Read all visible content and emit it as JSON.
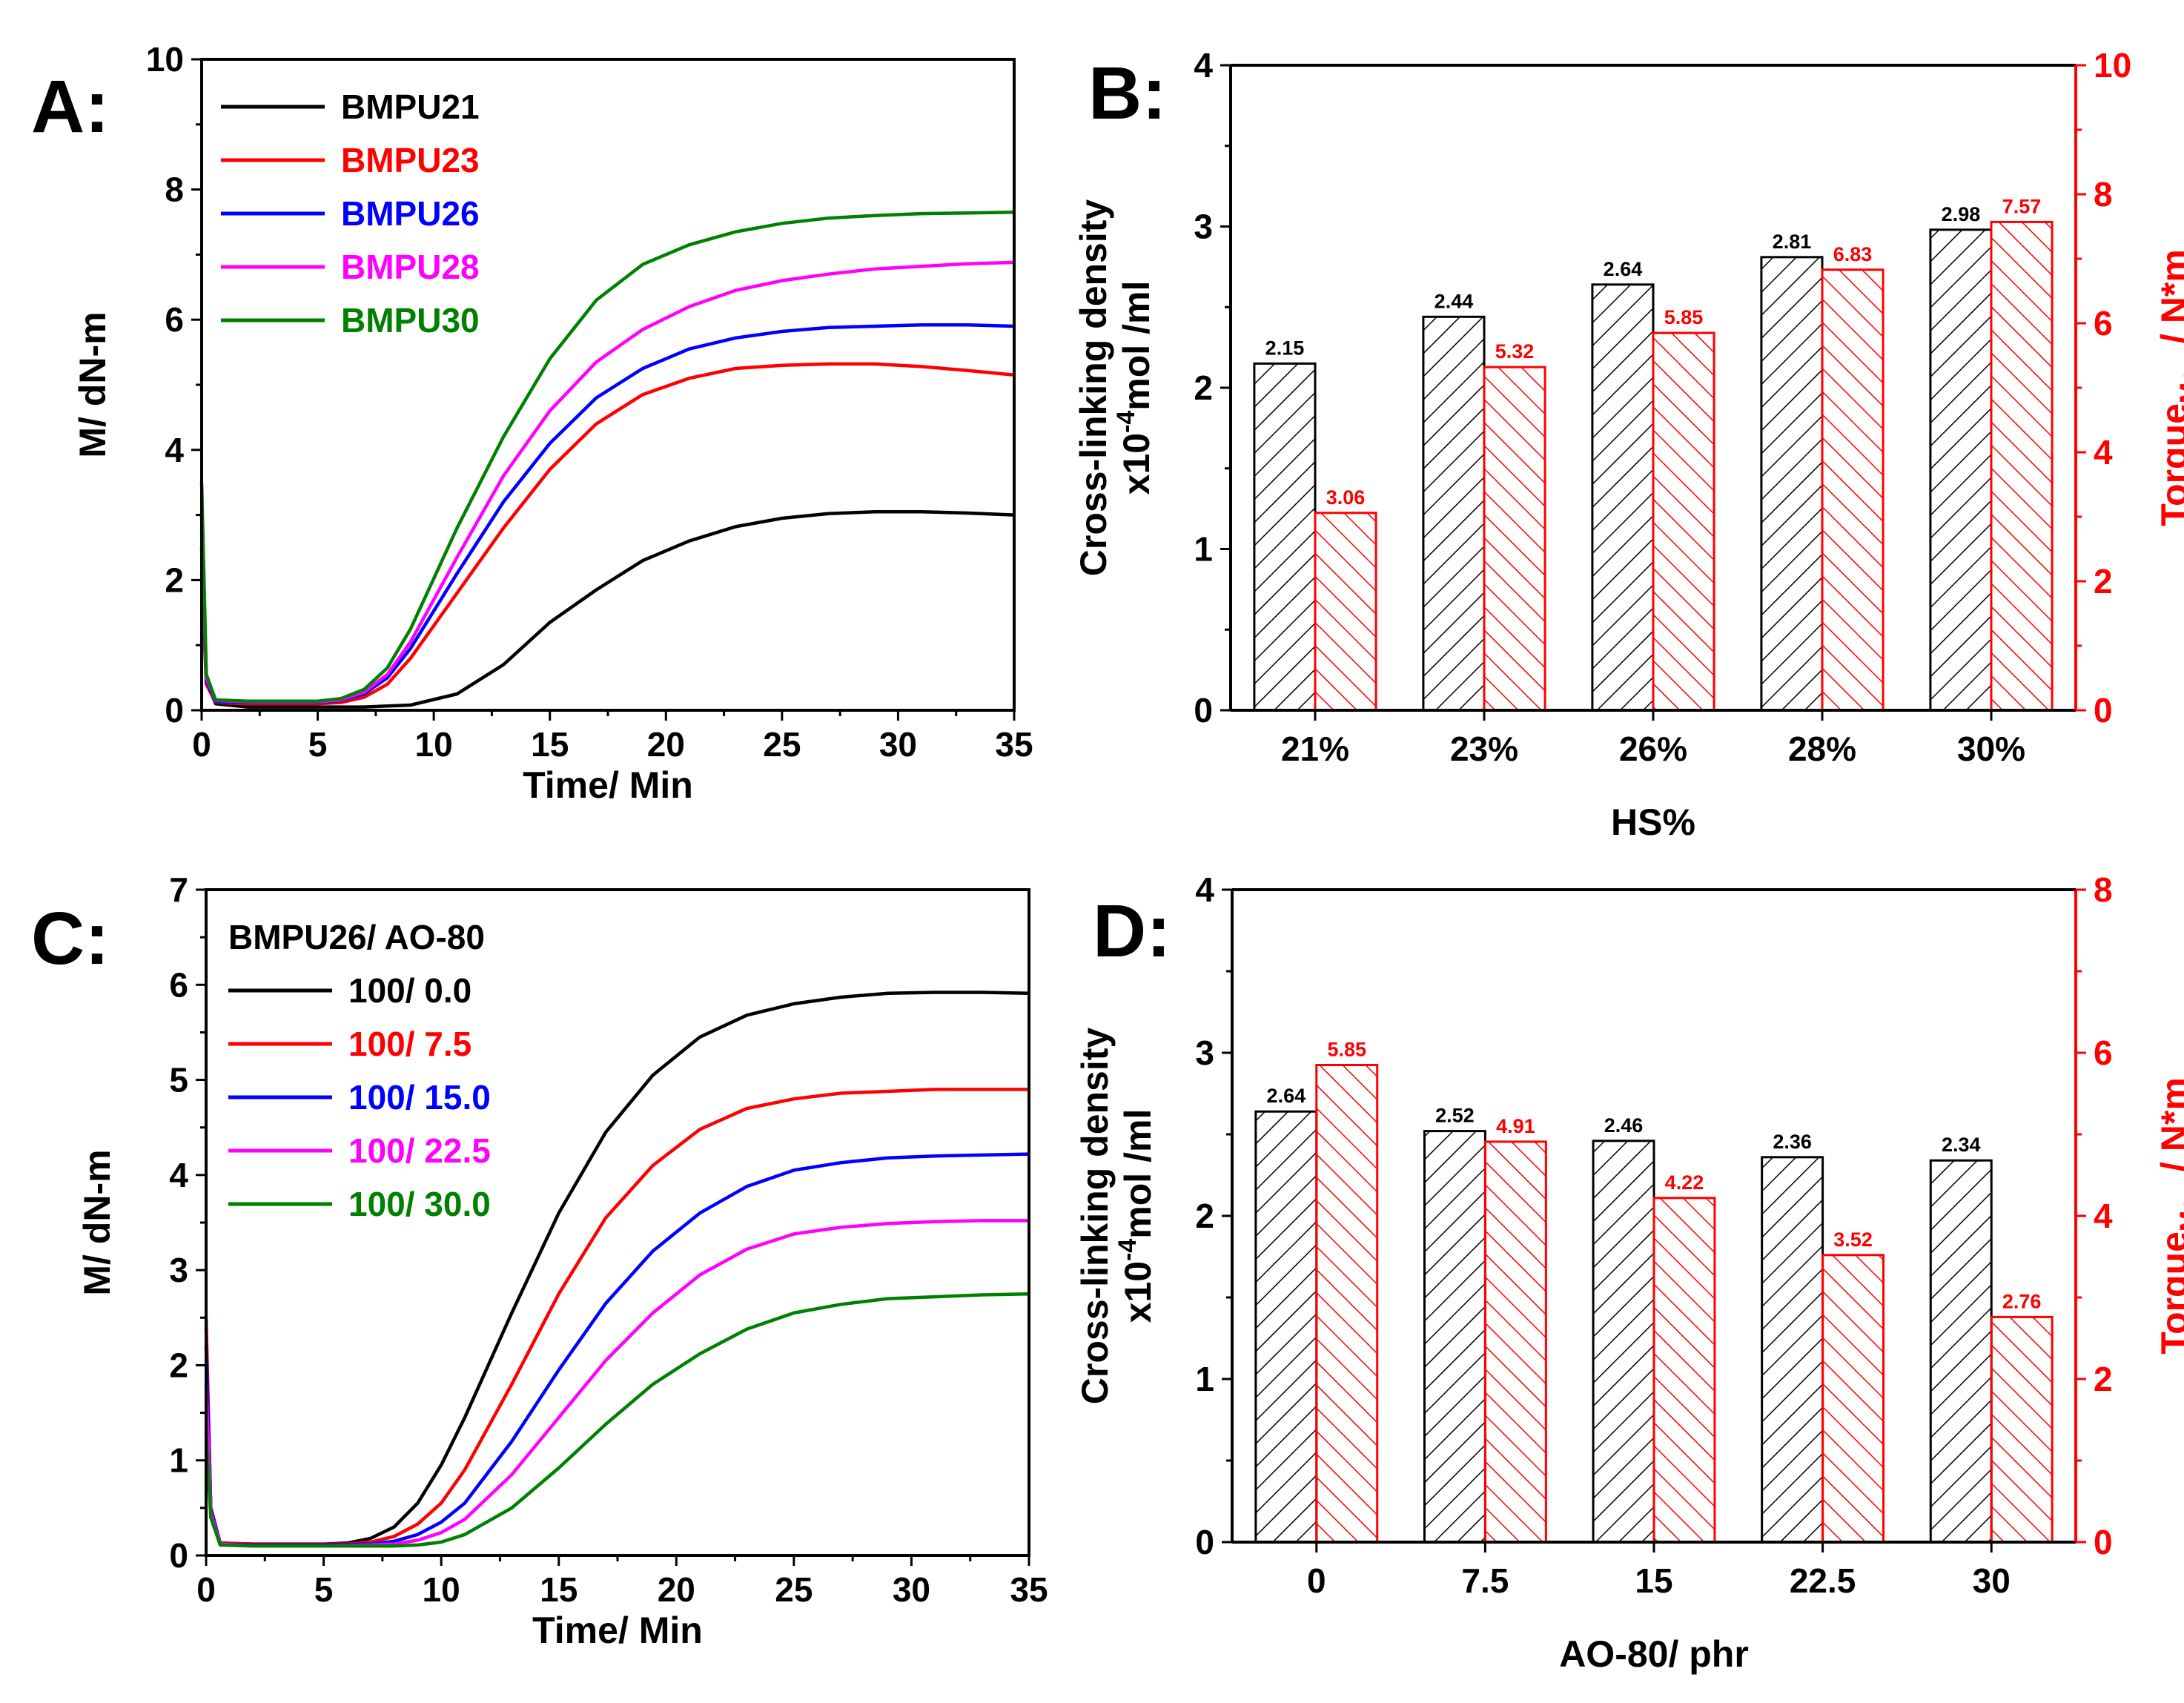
{
  "chart_data": [
    {
      "panel": "A:",
      "type": "line",
      "xlabel": "Time/ Min",
      "ylabel": "M/ dN-m",
      "xlim": [
        0,
        35
      ],
      "ylim": [
        0,
        10
      ],
      "xticks": [
        "0",
        "5",
        "10",
        "15",
        "20",
        "25",
        "30",
        "35"
      ],
      "yticks": [
        "0",
        "2",
        "4",
        "6",
        "8",
        "10"
      ],
      "legend_position": "top-left",
      "series": [
        {
          "name": "BMPU21",
          "color": "#000000",
          "points": [
            [
              0,
              3.0
            ],
            [
              0.2,
              0.45
            ],
            [
              0.6,
              0.1
            ],
            [
              2,
              0.05
            ],
            [
              5,
              0.05
            ],
            [
              7,
              0.05
            ],
            [
              9,
              0.08
            ],
            [
              11,
              0.25
            ],
            [
              13,
              0.7
            ],
            [
              15,
              1.35
            ],
            [
              17,
              1.85
            ],
            [
              19,
              2.3
            ],
            [
              21,
              2.6
            ],
            [
              23,
              2.82
            ],
            [
              25,
              2.95
            ],
            [
              27,
              3.02
            ],
            [
              29,
              3.05
            ],
            [
              31,
              3.05
            ],
            [
              33,
              3.03
            ],
            [
              35,
              3.0
            ]
          ]
        },
        {
          "name": "BMPU23",
          "color": "#ff0000",
          "points": [
            [
              0,
              2.1
            ],
            [
              0.2,
              0.4
            ],
            [
              0.6,
              0.12
            ],
            [
              2,
              0.1
            ],
            [
              5,
              0.1
            ],
            [
              6,
              0.12
            ],
            [
              7,
              0.2
            ],
            [
              8,
              0.4
            ],
            [
              9,
              0.8
            ],
            [
              11,
              1.8
            ],
            [
              13,
              2.8
            ],
            [
              15,
              3.7
            ],
            [
              17,
              4.4
            ],
            [
              19,
              4.85
            ],
            [
              21,
              5.1
            ],
            [
              23,
              5.25
            ],
            [
              25,
              5.3
            ],
            [
              27,
              5.32
            ],
            [
              29,
              5.32
            ],
            [
              31,
              5.28
            ],
            [
              33,
              5.22
            ],
            [
              35,
              5.15
            ]
          ]
        },
        {
          "name": "BMPU26",
          "color": "#0000ff",
          "points": [
            [
              0,
              2.5
            ],
            [
              0.2,
              0.45
            ],
            [
              0.6,
              0.13
            ],
            [
              2,
              0.12
            ],
            [
              5,
              0.12
            ],
            [
              6,
              0.15
            ],
            [
              7,
              0.25
            ],
            [
              8,
              0.5
            ],
            [
              9,
              0.95
            ],
            [
              11,
              2.1
            ],
            [
              13,
              3.2
            ],
            [
              15,
              4.1
            ],
            [
              17,
              4.8
            ],
            [
              19,
              5.25
            ],
            [
              21,
              5.55
            ],
            [
              23,
              5.72
            ],
            [
              25,
              5.82
            ],
            [
              27,
              5.88
            ],
            [
              29,
              5.9
            ],
            [
              31,
              5.92
            ],
            [
              33,
              5.92
            ],
            [
              35,
              5.9
            ]
          ]
        },
        {
          "name": "BMPU28",
          "color": "#ff00ff",
          "points": [
            [
              0,
              2.8
            ],
            [
              0.2,
              0.5
            ],
            [
              0.6,
              0.15
            ],
            [
              2,
              0.13
            ],
            [
              5,
              0.13
            ],
            [
              6,
              0.16
            ],
            [
              7,
              0.28
            ],
            [
              8,
              0.55
            ],
            [
              9,
              1.05
            ],
            [
              11,
              2.35
            ],
            [
              13,
              3.6
            ],
            [
              15,
              4.6
            ],
            [
              17,
              5.35
            ],
            [
              19,
              5.85
            ],
            [
              21,
              6.2
            ],
            [
              23,
              6.45
            ],
            [
              25,
              6.6
            ],
            [
              27,
              6.7
            ],
            [
              29,
              6.78
            ],
            [
              31,
              6.82
            ],
            [
              33,
              6.86
            ],
            [
              35,
              6.88
            ]
          ]
        },
        {
          "name": "BMPU30",
          "color": "#008000",
          "points": [
            [
              0,
              3.5
            ],
            [
              0.2,
              0.55
            ],
            [
              0.6,
              0.16
            ],
            [
              2,
              0.14
            ],
            [
              5,
              0.14
            ],
            [
              6,
              0.18
            ],
            [
              7,
              0.32
            ],
            [
              8,
              0.65
            ],
            [
              9,
              1.25
            ],
            [
              11,
              2.8
            ],
            [
              13,
              4.2
            ],
            [
              15,
              5.4
            ],
            [
              17,
              6.3
            ],
            [
              19,
              6.85
            ],
            [
              21,
              7.15
            ],
            [
              23,
              7.35
            ],
            [
              25,
              7.48
            ],
            [
              27,
              7.56
            ],
            [
              29,
              7.6
            ],
            [
              31,
              7.63
            ],
            [
              33,
              7.64
            ],
            [
              35,
              7.65
            ]
          ]
        }
      ]
    },
    {
      "panel": "B:",
      "type": "bar",
      "xlabel": "HS%",
      "ylabel_line1": "Cross-linking density",
      "ylabel_line2_pre": "x10",
      "ylabel_line2_sup": "-4",
      "ylabel_line2_post": "mol /ml",
      "y2label_main": "Torque",
      "y2label_sub": "Max",
      "y2label_post": " / N*m",
      "categories": [
        "21%",
        "23%",
        "26%",
        "28%",
        "30%"
      ],
      "ylim": [
        0,
        4
      ],
      "y2lim": [
        0,
        10
      ],
      "yticks": [
        "0",
        "1",
        "2",
        "3",
        "4"
      ],
      "y2ticks": [
        "0",
        "2",
        "4",
        "6",
        "8",
        "10"
      ],
      "series": [
        {
          "name": "Cross-linking density",
          "axis": "left",
          "color": "#000000",
          "values": [
            2.15,
            2.44,
            2.64,
            2.81,
            2.98
          ],
          "labels": [
            "2.15",
            "2.44",
            "2.64",
            "2.81",
            "2.98"
          ]
        },
        {
          "name": "Torque Max",
          "axis": "right",
          "color": "#ff0000",
          "values": [
            3.06,
            5.32,
            5.85,
            6.83,
            7.57
          ],
          "labels": [
            "3.06",
            "5.32",
            "5.85",
            "6.83",
            "7.57"
          ]
        }
      ]
    },
    {
      "panel": "C:",
      "type": "line",
      "xlabel": "Time/ Min",
      "ylabel": "M/ dN-m",
      "xlim": [
        0,
        35
      ],
      "ylim": [
        0,
        7
      ],
      "xticks": [
        "0",
        "5",
        "10",
        "15",
        "20",
        "25",
        "30",
        "35"
      ],
      "yticks": [
        "0",
        "1",
        "2",
        "3",
        "4",
        "5",
        "6",
        "7"
      ],
      "legend_title": "BMPU26/ AO-80",
      "legend_position": "top-left",
      "series": [
        {
          "name": "100/ 0.0",
          "color": "#000000",
          "points": [
            [
              0,
              2.4
            ],
            [
              0.2,
              0.5
            ],
            [
              0.6,
              0.13
            ],
            [
              2,
              0.12
            ],
            [
              5,
              0.12
            ],
            [
              6,
              0.13
            ],
            [
              7,
              0.18
            ],
            [
              8,
              0.3
            ],
            [
              9,
              0.55
            ],
            [
              10,
              0.95
            ],
            [
              11,
              1.45
            ],
            [
              13,
              2.55
            ],
            [
              15,
              3.6
            ],
            [
              17,
              4.45
            ],
            [
              19,
              5.05
            ],
            [
              21,
              5.45
            ],
            [
              23,
              5.68
            ],
            [
              25,
              5.8
            ],
            [
              27,
              5.87
            ],
            [
              29,
              5.91
            ],
            [
              31,
              5.92
            ],
            [
              33,
              5.92
            ],
            [
              35,
              5.91
            ]
          ]
        },
        {
          "name": "100/ 7.5",
          "color": "#ff0000",
          "points": [
            [
              0,
              2.5
            ],
            [
              0.2,
              0.5
            ],
            [
              0.6,
              0.13
            ],
            [
              2,
              0.12
            ],
            [
              5,
              0.12
            ],
            [
              6,
              0.12
            ],
            [
              7,
              0.14
            ],
            [
              8,
              0.2
            ],
            [
              9,
              0.33
            ],
            [
              10,
              0.55
            ],
            [
              11,
              0.9
            ],
            [
              13,
              1.8
            ],
            [
              15,
              2.75
            ],
            [
              17,
              3.55
            ],
            [
              19,
              4.1
            ],
            [
              21,
              4.48
            ],
            [
              23,
              4.7
            ],
            [
              25,
              4.8
            ],
            [
              27,
              4.86
            ],
            [
              29,
              4.88
            ],
            [
              31,
              4.9
            ],
            [
              33,
              4.9
            ],
            [
              35,
              4.9
            ]
          ]
        },
        {
          "name": "100/ 15.0",
          "color": "#0000ff",
          "points": [
            [
              0,
              2.2
            ],
            [
              0.2,
              0.5
            ],
            [
              0.6,
              0.12
            ],
            [
              2,
              0.11
            ],
            [
              5,
              0.11
            ],
            [
              7,
              0.12
            ],
            [
              8,
              0.15
            ],
            [
              9,
              0.22
            ],
            [
              10,
              0.35
            ],
            [
              11,
              0.55
            ],
            [
              13,
              1.2
            ],
            [
              15,
              1.95
            ],
            [
              17,
              2.65
            ],
            [
              19,
              3.2
            ],
            [
              21,
              3.6
            ],
            [
              23,
              3.88
            ],
            [
              25,
              4.05
            ],
            [
              27,
              4.13
            ],
            [
              29,
              4.18
            ],
            [
              31,
              4.2
            ],
            [
              33,
              4.21
            ],
            [
              35,
              4.22
            ]
          ]
        },
        {
          "name": "100/ 22.5",
          "color": "#ff00ff",
          "points": [
            [
              0,
              1.8
            ],
            [
              0.2,
              0.45
            ],
            [
              0.6,
              0.12
            ],
            [
              2,
              0.1
            ],
            [
              5,
              0.1
            ],
            [
              7,
              0.11
            ],
            [
              8,
              0.12
            ],
            [
              9,
              0.16
            ],
            [
              10,
              0.24
            ],
            [
              11,
              0.38
            ],
            [
              13,
              0.85
            ],
            [
              15,
              1.45
            ],
            [
              17,
              2.05
            ],
            [
              19,
              2.55
            ],
            [
              21,
              2.95
            ],
            [
              23,
              3.22
            ],
            [
              25,
              3.38
            ],
            [
              27,
              3.45
            ],
            [
              29,
              3.49
            ],
            [
              31,
              3.51
            ],
            [
              33,
              3.52
            ],
            [
              35,
              3.52
            ]
          ]
        },
        {
          "name": "100/ 30.0",
          "color": "#008000",
          "points": [
            [
              0,
              1.3
            ],
            [
              0.2,
              0.4
            ],
            [
              0.6,
              0.11
            ],
            [
              2,
              0.1
            ],
            [
              5,
              0.1
            ],
            [
              8,
              0.1
            ],
            [
              9,
              0.11
            ],
            [
              10,
              0.14
            ],
            [
              11,
              0.22
            ],
            [
              13,
              0.5
            ],
            [
              15,
              0.92
            ],
            [
              17,
              1.38
            ],
            [
              19,
              1.8
            ],
            [
              21,
              2.12
            ],
            [
              23,
              2.38
            ],
            [
              25,
              2.55
            ],
            [
              27,
              2.64
            ],
            [
              29,
              2.7
            ],
            [
              31,
              2.72
            ],
            [
              33,
              2.74
            ],
            [
              35,
              2.75
            ]
          ]
        }
      ]
    },
    {
      "panel": "D:",
      "type": "bar",
      "xlabel": "AO-80/ phr",
      "ylabel_line1": "Cross-linking density",
      "ylabel_line2_pre": "x10",
      "ylabel_line2_sup": "-4",
      "ylabel_line2_post": "mol /ml",
      "y2label_main": "Torque",
      "y2label_sub": "Max",
      "y2label_post": " / N*m",
      "categories": [
        "0",
        "7.5",
        "15",
        "22.5",
        "30"
      ],
      "ylim": [
        0,
        4
      ],
      "y2lim": [
        0,
        8
      ],
      "yticks": [
        "0",
        "1",
        "2",
        "3",
        "4"
      ],
      "y2ticks": [
        "0",
        "2",
        "4",
        "6",
        "8"
      ],
      "series": [
        {
          "name": "Cross-linking density",
          "axis": "left",
          "color": "#000000",
          "values": [
            2.64,
            2.52,
            2.46,
            2.36,
            2.34
          ],
          "labels": [
            "2.64",
            "2.52",
            "2.46",
            "2.36",
            "2.34"
          ]
        },
        {
          "name": "Torque Max",
          "axis": "right",
          "color": "#ff0000",
          "values": [
            5.85,
            4.91,
            4.22,
            3.52,
            2.76
          ],
          "labels": [
            "5.85",
            "4.91",
            "4.22",
            "3.52",
            "2.76"
          ]
        }
      ]
    }
  ]
}
